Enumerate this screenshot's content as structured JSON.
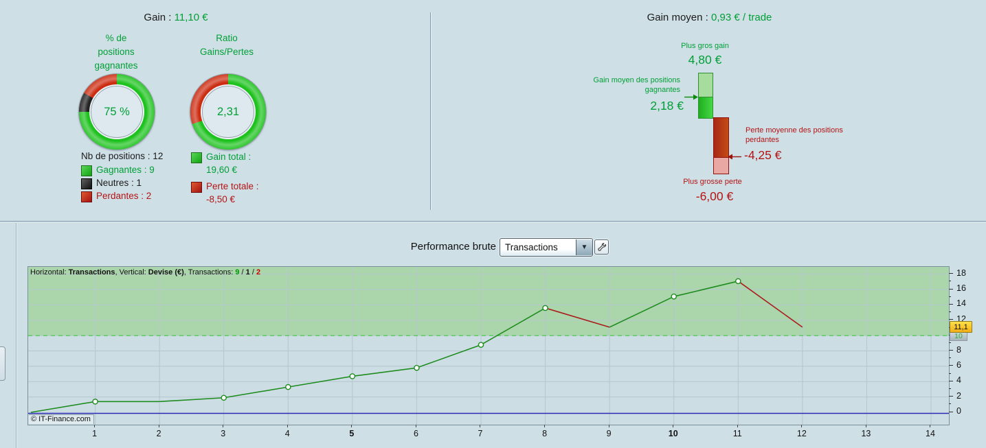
{
  "colors": {
    "green_text": "#009f35",
    "red_text": "#b31414",
    "donut_green": "#1ec21e",
    "donut_red": "#cc2d12",
    "donut_black": "#222222",
    "line_green": "#1e8c1e",
    "line_red": "#aa1c1c",
    "dashed_green": "#3ecc3e",
    "zero_blue": "#2828b4",
    "green_zone": "#abd5ab",
    "grid": "#b5c6ce"
  },
  "icons": {
    "dropdown_arrow": "▼"
  },
  "left_summary": {
    "title_label": "Gain :",
    "title_value": "11,10 €",
    "donut_pct": {
      "title_lines": [
        "% de",
        "positions",
        "gagnantes"
      ],
      "center": "75 %",
      "segments": [
        {
          "color": "#1ec21e",
          "pct": 75
        },
        {
          "color": "#222222",
          "pct": 8.33
        },
        {
          "color": "#cc2d12",
          "pct": 16.67
        }
      ]
    },
    "donut_ratio": {
      "title_lines": [
        "Ratio",
        "Gains/Pertes"
      ],
      "center": "2,31",
      "segments": [
        {
          "color": "#1ec21e",
          "pct": 69.75
        },
        {
          "color": "#cc2d12",
          "pct": 30.25
        }
      ]
    },
    "positions": {
      "header": "Nb de positions : 12",
      "rows": [
        {
          "label": "Gagnantes : 9",
          "color": "green"
        },
        {
          "label": "Neutres : 1",
          "color": "black"
        },
        {
          "label": "Perdantes : 2",
          "color": "red"
        }
      ]
    },
    "totals": [
      {
        "label": "Gain total :",
        "value": "19,60 €",
        "color": "green"
      },
      {
        "label": "Perte totale :",
        "value": "-8,50 €",
        "color": "red"
      }
    ]
  },
  "right_summary": {
    "title_label": "Gain moyen :",
    "title_value": "0,93 € / trade",
    "max_gain_label": "Plus gros gain",
    "max_gain_value": "4,80 €",
    "max_gain": 4.8,
    "avg_gain_label_lines": [
      "Gain moyen des positions",
      "gagnantes"
    ],
    "avg_gain_value": "2,18 €",
    "avg_gain": 2.18,
    "avg_loss_label_lines": [
      "Perte moyenne des positions",
      "perdantes"
    ],
    "avg_loss_value": "-4,25 €",
    "avg_loss": -4.25,
    "max_loss_label": "Plus grosse perte",
    "max_loss_value": "-6,00 €",
    "max_loss": -6.0
  },
  "performance": {
    "title": "Performance brute",
    "dropdown_value": "Transactions"
  },
  "chart_data": {
    "type": "line",
    "title": "Performance brute",
    "info_parts": [
      {
        "t": "Horizontal: "
      },
      {
        "t": "Transactions",
        "b": 1
      },
      {
        "t": ", Vertical: "
      },
      {
        "t": "Devise (€)",
        "b": 1
      },
      {
        "t": ", Transactions: "
      },
      {
        "t": "9",
        "b": 1,
        "c": "#009900"
      },
      {
        "t": " / "
      },
      {
        "t": "1",
        "b": 1
      },
      {
        "t": " / "
      },
      {
        "t": "2",
        "b": 1,
        "c": "#cc0000"
      }
    ],
    "xlabel": "Transactions",
    "ylabel": "Devise (€)",
    "x": [
      0,
      1,
      2,
      3,
      4,
      5,
      6,
      7,
      8,
      9,
      10,
      11,
      12
    ],
    "cumulative_gain": [
      0,
      1.4,
      1.4,
      1.9,
      3.3,
      4.7,
      5.8,
      8.8,
      13.6,
      11.1,
      15.1,
      17.1,
      11.1
    ],
    "winning_points": [
      1,
      3,
      4,
      5,
      6,
      7,
      8,
      10,
      11
    ],
    "losing_segments": [
      [
        8,
        9
      ],
      [
        11,
        12
      ]
    ],
    "neutral_segments": [
      [
        1,
        2
      ]
    ],
    "x_ticks": [
      1,
      2,
      3,
      4,
      5,
      6,
      7,
      8,
      9,
      10,
      11,
      12,
      13,
      14
    ],
    "x_bold_ticks": [
      5,
      10
    ],
    "y_ticks": [
      0,
      2,
      4,
      6,
      8,
      10,
      12,
      14,
      16,
      18
    ],
    "ylim": [
      -1.6,
      19
    ],
    "grid": true,
    "dashed_level": 10,
    "dashed_level_label": "10",
    "zero_line": 0,
    "cursor_value": 11.1,
    "cursor_value_label": "11,1",
    "copyright": "© IT-Finance.com"
  }
}
